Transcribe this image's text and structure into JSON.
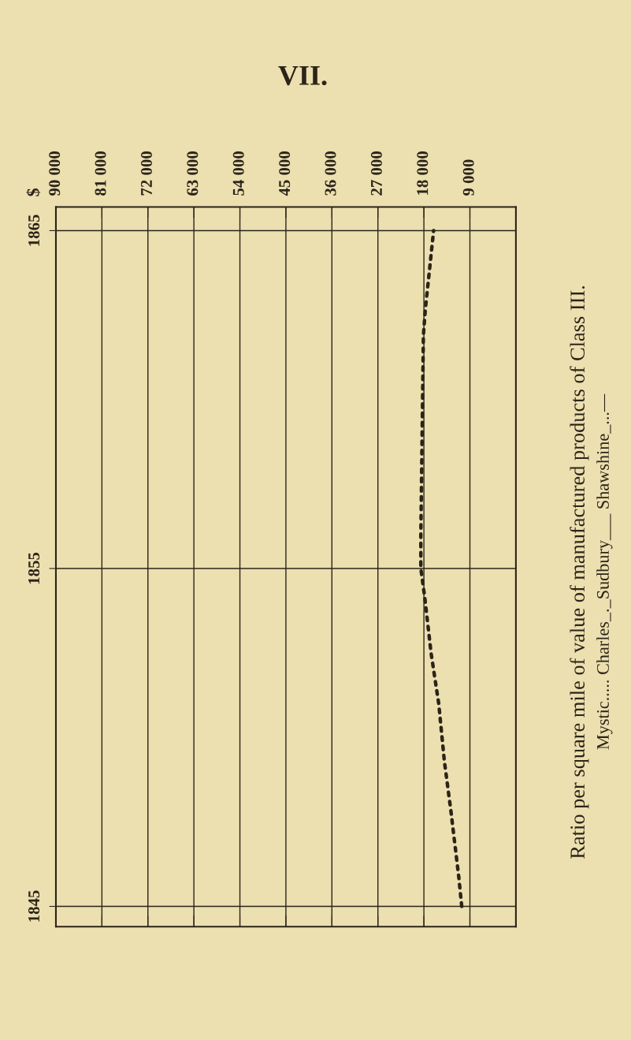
{
  "chart_data": {
    "type": "line",
    "orientation": "horizontal",
    "title": "Ratio per square mile of value of manufactured products of Class III.",
    "subtitle": "Mystic..... Charles_._Sudbury___ Shawshine_...—",
    "annotations": [
      "VII.",
      "$"
    ],
    "x": [
      1845,
      1845.9,
      1847.8,
      1849.3,
      1851,
      1852.5,
      1854.1,
      1855,
      1856,
      1861.9,
      1862.7,
      1865
    ],
    "series": [
      {
        "color": "#2b2418",
        "values": [
          10600,
          11200,
          12700,
          14000,
          15100,
          16600,
          17800,
          18600,
          18600,
          18100,
          17700,
          16100
        ]
      }
    ],
    "line_style": "dotted",
    "marker": "none",
    "xlim": [
      90000,
      0
    ],
    "xticks": [
      {
        "value": 90000,
        "label": "90 000"
      },
      {
        "value": 81000,
        "label": "81 000"
      },
      {
        "value": 72000,
        "label": "72 000"
      },
      {
        "value": 63000,
        "label": "63 000"
      },
      {
        "value": 54000,
        "label": "54 000"
      },
      {
        "value": 45000,
        "label": "45 000"
      },
      {
        "value": 36000,
        "label": "36 000"
      },
      {
        "value": 27000,
        "label": "27 000"
      },
      {
        "value": 18000,
        "label": "18 000"
      },
      {
        "value": 9000,
        "label": "9 000"
      },
      {
        "value": 0,
        "label": null
      }
    ],
    "ylim": [
      1844.4,
      1865.7
    ],
    "yticks": [
      1845,
      1855,
      1865
    ],
    "grid": true,
    "legend": false
  }
}
